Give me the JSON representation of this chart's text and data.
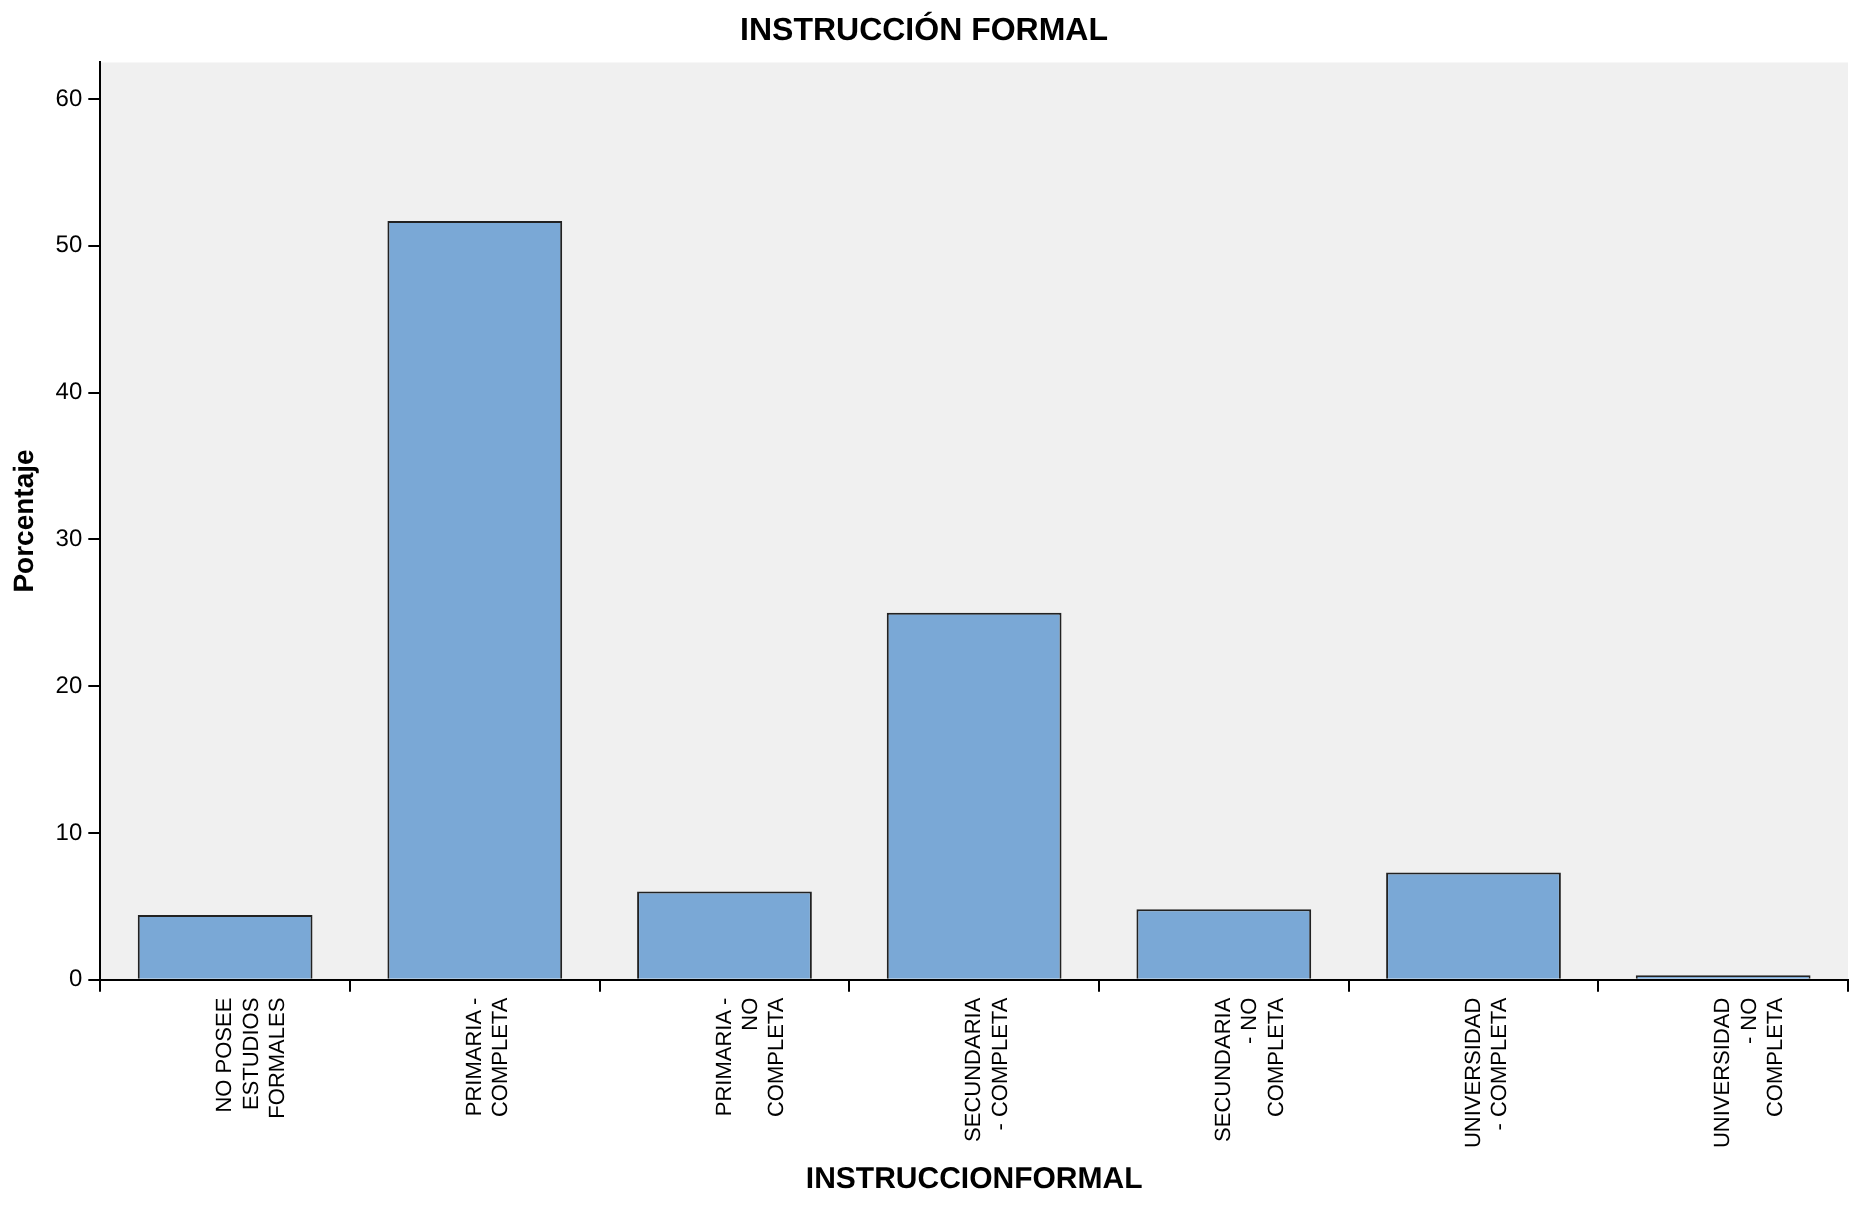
{
  "chart_data": {
    "type": "bar",
    "title": "INSTRUCCIÓN FORMAL",
    "xlabel": "INSTRUCCIONFORMAL",
    "ylabel": "Porcentaje",
    "categories": [
      "NO POSEE ESTUDIOS FORMALES",
      "PRIMARIA - COMPLETA",
      "PRIMARIA - NO COMPLETA",
      "SECUNDARIA - COMPLETA",
      "SECUNDARIA - NO COMPLETA",
      "UNIVERSIDAD - COMPLETA",
      "UNIVERSIDAD - NO COMPLETA"
    ],
    "values": [
      4.4,
      51.7,
      6.0,
      25.0,
      4.8,
      7.3,
      0.3
    ],
    "color": "#7aa8d6",
    "ylim": [
      0,
      62.5
    ],
    "yticks": [
      0,
      10,
      20,
      30,
      40,
      50,
      60
    ],
    "grid": false,
    "legend": false
  }
}
